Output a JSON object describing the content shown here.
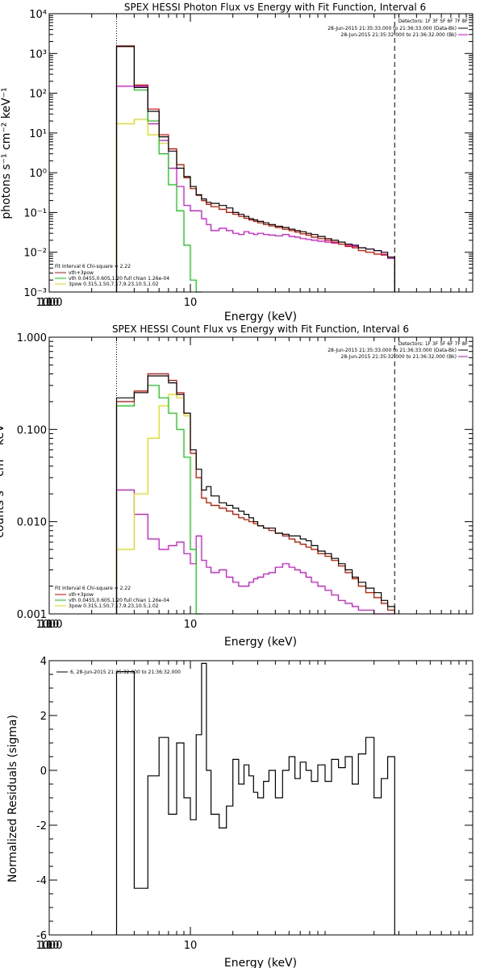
{
  "chart_data": [
    {
      "type": "line",
      "title": "SPEX HESSI Photon Flux vs Energy with Fit Function, Interval 6",
      "xlabel": "Energy (keV)",
      "ylabel": "photons s⁻¹ cm⁻² keV⁻¹",
      "xscale": "log",
      "yscale": "log",
      "xlim": [
        1,
        1000
      ],
      "ylim": [
        0.001,
        10000
      ],
      "x_ticks": [
        "1",
        "10",
        "100",
        "1000"
      ],
      "y_ticks": [
        "10⁻³",
        "10⁻²",
        "10⁻¹",
        "10⁰",
        "10¹",
        "10²",
        "10³",
        "10⁴"
      ],
      "vlines": [
        3.0,
        280
      ],
      "info_lines": [
        "Detectors: 1F 3F 5F 6F 7F 8F",
        "28-Jun-2015 21:35:33.000 to 21:36:33.000 (Data-Bk)",
        "28-Jun-2015 21:35:32.000 to 21:36:32.000 (Bk)"
      ],
      "fit_label": "Fit Interval 6   Chi-square = 2.22",
      "legend": [
        "vth+3pow",
        "vth 0.0455,0.605,1.20  full chian 1.26e-04",
        "3pow 0.315,1.50,7.17,9.23,10.5,1.02"
      ],
      "energy_edges": [
        3.0,
        4.0,
        5.0,
        6.0,
        7.0,
        8.0,
        9.0,
        10.0,
        11.0,
        12.0,
        13.0,
        14.0,
        16.0,
        18.0,
        20.0,
        22.0,
        24.0,
        26.0,
        28.0,
        30.0,
        33.0,
        36.0,
        40.0,
        45.0,
        50.0,
        55.0,
        60.0,
        66.0,
        72.0,
        80.0,
        90.0,
        100.0,
        112.0,
        125.0,
        140.0,
        155.0,
        175.0,
        200.0,
        225.0,
        250.0,
        280.0
      ],
      "series": [
        {
          "name": "Data-Bk",
          "color": "#000000",
          "values": [
            1500,
            140,
            35,
            8,
            3.5,
            1.3,
            0.8,
            0.45,
            0.28,
            0.22,
            0.18,
            0.17,
            0.15,
            0.13,
            0.1,
            0.09,
            0.08,
            0.07,
            0.065,
            0.06,
            0.055,
            0.05,
            0.045,
            0.042,
            0.038,
            0.035,
            0.033,
            0.03,
            0.028,
            0.025,
            0.022,
            0.02,
            0.018,
            0.016,
            0.015,
            0.013,
            0.012,
            0.011,
            0.01,
            0.0075
          ]
        },
        {
          "name": "vth+3pow",
          "color": "#dd0000",
          "values": [
            1550,
            160,
            40,
            9,
            4,
            1.6,
            0.75,
            0.4,
            0.27,
            0.2,
            0.16,
            0.14,
            0.12,
            0.1,
            0.09,
            0.08,
            0.072,
            0.065,
            0.06,
            0.055,
            0.05,
            0.046,
            0.042,
            0.038,
            0.035,
            0.032,
            0.029,
            0.027,
            0.024,
            0.022,
            0.02,
            0.018,
            0.016,
            0.014,
            0.013,
            0.011,
            0.01,
            0.009,
            0.0085,
            0.0075
          ]
        },
        {
          "name": "vth",
          "color": "#00cc00",
          "values": [
            1500,
            120,
            20,
            3,
            0.5,
            0.11,
            0.015,
            0.002,
            0.0003
          ]
        },
        {
          "name": "3pow",
          "color": "#dddd00",
          "values": [
            17,
            22,
            9,
            5.5,
            4,
            1.6,
            0.75,
            0.4,
            0.27,
            0.2,
            0.16,
            0.14,
            0.12,
            0.1,
            0.09,
            0.08,
            0.072,
            0.065,
            0.06,
            0.055,
            0.05,
            0.046,
            0.042,
            0.038,
            0.035,
            0.032,
            0.029,
            0.027,
            0.024,
            0.022,
            0.02,
            0.018,
            0.016,
            0.014,
            0.013,
            0.011,
            0.01,
            0.009,
            0.0085,
            0.0075
          ]
        },
        {
          "name": "Bk",
          "color": "#dd00dd",
          "values": [
            150,
            150,
            17,
            6.5,
            1.3,
            0.45,
            0.15,
            0.11,
            0.11,
            0.07,
            0.05,
            0.035,
            0.04,
            0.035,
            0.03,
            0.028,
            0.033,
            0.03,
            0.028,
            0.03,
            0.028,
            0.027,
            0.026,
            0.028,
            0.025,
            0.024,
            0.022,
            0.021,
            0.02,
            0.019,
            0.018,
            0.017,
            0.016,
            0.015,
            0.014,
            0.013,
            0.012,
            0.011,
            0.009,
            0.007
          ]
        }
      ]
    },
    {
      "type": "line",
      "title": "SPEX HESSI Count Flux vs Energy with Fit Function, Interval 6",
      "xlabel": "Energy (keV)",
      "ylabel": "counts s⁻¹ cm⁻² keV⁻¹",
      "xscale": "log",
      "yscale": "log",
      "xlim": [
        1,
        1000
      ],
      "ylim": [
        0.001,
        1
      ],
      "x_ticks": [
        "1",
        "10",
        "100",
        "1000"
      ],
      "y_ticks": [
        "0.001",
        "0.010",
        "0.100",
        "1.000"
      ],
      "vlines": [
        3.0,
        280
      ],
      "info_lines": [
        "Detectors: 1F 3F 5F 6F 7F 8F",
        "28-Jun-2015 21:35:33.000 to 21:36:33.000 (Data-Bk)",
        "28-Jun-2015 21:35:32.000 to 21:36:32.000 (Bk)"
      ],
      "fit_label": "Fit Interval 6   Chi-square = 2.22",
      "legend": [
        "vth+3pow",
        "vth 0.0455,0.605,1.20  full chian 1.26e-04",
        "3pow 0.315,1.50,7.17,9.23,10.5,1.02"
      ],
      "energy_edges": [
        3.0,
        4.0,
        5.0,
        6.0,
        7.0,
        8.0,
        9.0,
        10.0,
        11.0,
        12.0,
        13.0,
        14.0,
        16.0,
        18.0,
        20.0,
        22.0,
        24.0,
        26.0,
        28.0,
        30.0,
        33.0,
        36.0,
        40.0,
        45.0,
        50.0,
        55.0,
        60.0,
        66.0,
        72.0,
        80.0,
        90.0,
        100.0,
        112.0,
        125.0,
        140.0,
        155.0,
        175.0,
        200.0,
        225.0,
        250.0,
        280.0
      ],
      "series": [
        {
          "name": "Data-Bk",
          "color": "#000000",
          "values": [
            0.22,
            0.25,
            0.38,
            0.38,
            0.32,
            0.24,
            0.15,
            0.06,
            0.037,
            0.022,
            0.024,
            0.019,
            0.016,
            0.015,
            0.014,
            0.013,
            0.012,
            0.011,
            0.01,
            0.009,
            0.0085,
            0.0085,
            0.0075,
            0.0073,
            0.007,
            0.007,
            0.0065,
            0.0062,
            0.0055,
            0.0048,
            0.0045,
            0.004,
            0.0035,
            0.003,
            0.0025,
            0.0022,
            0.0019,
            0.0017,
            0.0014,
            0.0012
          ]
        },
        {
          "name": "vth+3pow",
          "color": "#dd0000",
          "values": [
            0.2,
            0.26,
            0.4,
            0.4,
            0.34,
            0.25,
            0.15,
            0.055,
            0.03,
            0.018,
            0.016,
            0.015,
            0.014,
            0.013,
            0.012,
            0.011,
            0.0105,
            0.01,
            0.0095,
            0.009,
            0.0085,
            0.008,
            0.0075,
            0.007,
            0.0065,
            0.006,
            0.0057,
            0.0053,
            0.005,
            0.0045,
            0.0042,
            0.0038,
            0.0033,
            0.0028,
            0.0024,
            0.002,
            0.0017,
            0.0015,
            0.0013,
            0.0011
          ]
        },
        {
          "name": "vth",
          "color": "#00cc00",
          "values": [
            0.18,
            0.26,
            0.3,
            0.22,
            0.15,
            0.1,
            0.05,
            0.005,
            0.0005
          ]
        },
        {
          "name": "3pow",
          "color": "#dddd00",
          "values": [
            0.005,
            0.02,
            0.08,
            0.18,
            0.24,
            0.22,
            0.14,
            0.055,
            0.03,
            0.018,
            0.016,
            0.015,
            0.014,
            0.013,
            0.012,
            0.011,
            0.0105,
            0.01,
            0.0095,
            0.009,
            0.0085,
            0.008,
            0.0075,
            0.007,
            0.0065,
            0.006,
            0.0057,
            0.0053,
            0.005,
            0.0045,
            0.0042,
            0.0038,
            0.0033,
            0.0028,
            0.0024,
            0.002,
            0.0017,
            0.0015,
            0.0013,
            0.0011
          ]
        },
        {
          "name": "Bk",
          "color": "#dd00dd",
          "values": [
            0.022,
            0.012,
            0.0065,
            0.005,
            0.0055,
            0.006,
            0.0045,
            0.0035,
            0.007,
            0.0038,
            0.0032,
            0.0028,
            0.003,
            0.0025,
            0.0022,
            0.002,
            0.002,
            0.0022,
            0.0024,
            0.0025,
            0.0027,
            0.0028,
            0.0032,
            0.0035,
            0.0032,
            0.003,
            0.0028,
            0.0025,
            0.0022,
            0.002,
            0.0018,
            0.0016,
            0.0014,
            0.0013,
            0.0012,
            0.0011,
            0.0011,
            0.001,
            0.001,
            0.001
          ]
        }
      ]
    },
    {
      "type": "line",
      "title": "",
      "xlabel": "Energy (keV)",
      "ylabel": "Normalized Residuals (sigma)",
      "xscale": "log",
      "yscale": "linear",
      "xlim": [
        1,
        1000
      ],
      "ylim": [
        -6,
        4
      ],
      "x_ticks": [
        "1",
        "10",
        "100",
        "1000"
      ],
      "y_ticks": [
        "-6",
        "-4",
        "-2",
        "0",
        "2",
        "4"
      ],
      "legend": [
        "6, 28-Jun-2015 21:35:32.000 to 21:36:32.000"
      ],
      "energy_edges": [
        3.0,
        4.0,
        5.0,
        6.0,
        7.0,
        8.0,
        9.0,
        10.0,
        11.0,
        12.0,
        13.0,
        14.0,
        16.0,
        18.0,
        20.0,
        22.0,
        24.0,
        26.0,
        28.0,
        30.0,
        33.0,
        36.0,
        40.0,
        45.0,
        50.0,
        55.0,
        60.0,
        66.0,
        72.0,
        80.0,
        90.0,
        100.0,
        112.0,
        125.0,
        140.0,
        155.0,
        175.0,
        200.0,
        225.0,
        250.0,
        280.0
      ],
      "series": [
        {
          "name": "residuals",
          "color": "#000000",
          "values": [
            3.6,
            -4.3,
            -0.2,
            1.2,
            -1.6,
            1.0,
            -1.0,
            -1.8,
            1.3,
            3.9,
            0.0,
            -1.6,
            -2.1,
            -1.3,
            0.4,
            -0.5,
            0.2,
            -0.2,
            -0.8,
            -1.0,
            -0.4,
            0.0,
            -1.0,
            0.0,
            0.5,
            -0.3,
            0.3,
            0.0,
            -0.4,
            0.2,
            -0.4,
            0.4,
            0.1,
            0.5,
            -0.5,
            0.6,
            1.2,
            -1.0,
            -0.3,
            0.5
          ]
        }
      ]
    }
  ]
}
